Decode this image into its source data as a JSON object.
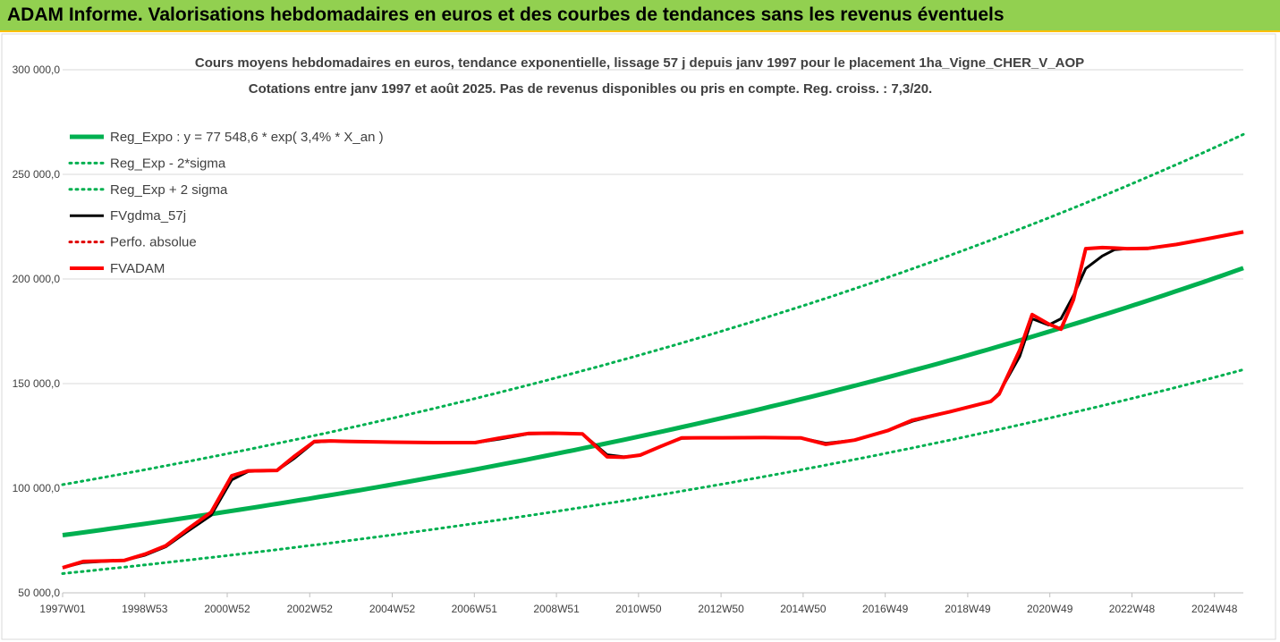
{
  "banner": {
    "title": "ADAM Informe. Valorisations hebdomadaires en euros et des courbes de tendances sans les revenus éventuels"
  },
  "chart_data": {
    "type": "line",
    "title": "Cours moyens hebdomadaires en euros, tendance exponentielle, lissage 57 j depuis janv 1997 pour le placement 1ha_Vigne_CHER_V_AOP",
    "subtitle": "Cotations entre janv 1997 et août 2025.  Pas de revenus disponibles ou pris en compte. Reg. croiss. : 7,3/20.",
    "x_range": [
      1997.0,
      2025.62
    ],
    "ylim": [
      50000,
      300000
    ],
    "y_ticks": [
      {
        "value": 50000,
        "label": "50 000,0"
      },
      {
        "value": 100000,
        "label": "100 000,0"
      },
      {
        "value": 150000,
        "label": "150 000,0"
      },
      {
        "value": 200000,
        "label": "200 000,0"
      },
      {
        "value": 250000,
        "label": "250 000,0"
      },
      {
        "value": 300000,
        "label": "300 000,0"
      }
    ],
    "x_ticks": [
      {
        "x": 1997.0,
        "label": "1997W01"
      },
      {
        "x": 1998.99,
        "label": "1998W53"
      },
      {
        "x": 2000.99,
        "label": "2000W52"
      },
      {
        "x": 2002.99,
        "label": "2002W52"
      },
      {
        "x": 2004.99,
        "label": "2004W52"
      },
      {
        "x": 2006.98,
        "label": "2006W51"
      },
      {
        "x": 2008.97,
        "label": "2008W51"
      },
      {
        "x": 2010.96,
        "label": "2010W50"
      },
      {
        "x": 2012.96,
        "label": "2012W50"
      },
      {
        "x": 2014.95,
        "label": "2014W50"
      },
      {
        "x": 2016.94,
        "label": "2016W49"
      },
      {
        "x": 2018.94,
        "label": "2018W49"
      },
      {
        "x": 2020.93,
        "label": "2020W49"
      },
      {
        "x": 2022.92,
        "label": "2022W48"
      },
      {
        "x": 2024.92,
        "label": "2024W48"
      }
    ],
    "grid": "horizontal",
    "legend_position": "left",
    "series": [
      {
        "name": "Reg_Expo : y = 77 548,6 * exp( 3,4% *  X_an )",
        "color": "#00b050",
        "style": "solid",
        "width": 5,
        "kind": "expo",
        "a": 77548.6,
        "b": 0.034
      },
      {
        "name": "Reg_Exp - 2*sigma",
        "color": "#00b050",
        "style": "dotted",
        "width": 3,
        "kind": "expo",
        "a": 59200,
        "b": 0.034
      },
      {
        "name": "Reg_Exp + 2 sigma",
        "color": "#00b050",
        "style": "dotted",
        "width": 3,
        "kind": "expo",
        "a": 101700,
        "b": 0.034
      },
      {
        "name": "FVgdma_57j",
        "color": "#000000",
        "style": "solid",
        "width": 3,
        "kind": "points",
        "x": [
          1997.0,
          1997.5,
          1998.0,
          1998.5,
          1999.0,
          1999.5,
          2000.0,
          2000.6,
          2001.1,
          2001.5,
          2002.2,
          2002.6,
          2003.1,
          2003.5,
          2004.0,
          2005.0,
          2006.0,
          2007.0,
          2007.6,
          2008.3,
          2008.9,
          2009.6,
          2010.2,
          2010.6,
          2011.0,
          2011.5,
          2012.0,
          2012.5,
          2013.0,
          2014.0,
          2014.9,
          2015.5,
          2016.2,
          2017.0,
          2017.6,
          2018.5,
          2019.5,
          2019.7,
          2020.2,
          2020.5,
          2020.9,
          2021.2,
          2021.5,
          2021.8,
          2022.2,
          2022.5,
          2022.8,
          2023.3,
          2024.0,
          2024.7,
          2025.62
        ],
        "y": [
          62000,
          64500,
          65000,
          65500,
          68000,
          72000,
          79000,
          87000,
          104000,
          108000,
          108500,
          114000,
          122000,
          122500,
          122300,
          122000,
          121800,
          121700,
          123500,
          126000,
          126200,
          126000,
          116000,
          115000,
          115700,
          120000,
          123800,
          124000,
          124100,
          124200,
          124000,
          121500,
          123000,
          127500,
          132000,
          136500,
          141500,
          145500,
          163000,
          181000,
          178000,
          181000,
          192000,
          205000,
          211000,
          214000,
          214500,
          214500,
          216500,
          219000,
          222500
        ]
      },
      {
        "name": "Perfo. absolue",
        "color": "#e00000",
        "style": "dotted",
        "width": 3,
        "kind": "none"
      },
      {
        "name": "FVADAM",
        "color": "#ff0000",
        "style": "solid",
        "width": 4,
        "kind": "points",
        "x": [
          1997.0,
          1997.5,
          1998.0,
          1998.5,
          1999.0,
          1999.5,
          2000.0,
          2000.6,
          2001.1,
          2001.5,
          2002.2,
          2002.6,
          2003.1,
          2003.5,
          2004.0,
          2005.0,
          2006.0,
          2007.0,
          2007.6,
          2008.3,
          2008.9,
          2009.6,
          2010.2,
          2010.6,
          2011.0,
          2011.5,
          2012.0,
          2012.5,
          2013.0,
          2014.0,
          2014.9,
          2015.5,
          2016.2,
          2017.0,
          2017.6,
          2018.5,
          2019.5,
          2019.7,
          2020.2,
          2020.5,
          2020.9,
          2021.2,
          2021.5,
          2021.8,
          2022.2,
          2022.5,
          2022.8,
          2023.3,
          2024.0,
          2024.7,
          2025.62
        ],
        "y": [
          62000,
          65000,
          65200,
          65500,
          68500,
          72500,
          80000,
          88500,
          106000,
          108300,
          108500,
          115000,
          122300,
          122600,
          122300,
          122000,
          121800,
          121800,
          124000,
          126200,
          126300,
          126000,
          115000,
          114800,
          115800,
          120000,
          124000,
          124100,
          124100,
          124200,
          124000,
          121000,
          123000,
          127500,
          132500,
          136500,
          141500,
          145000,
          166000,
          183000,
          178500,
          176000,
          190000,
          214500,
          215000,
          214800,
          214500,
          214600,
          216500,
          219000,
          222500
        ]
      }
    ]
  }
}
